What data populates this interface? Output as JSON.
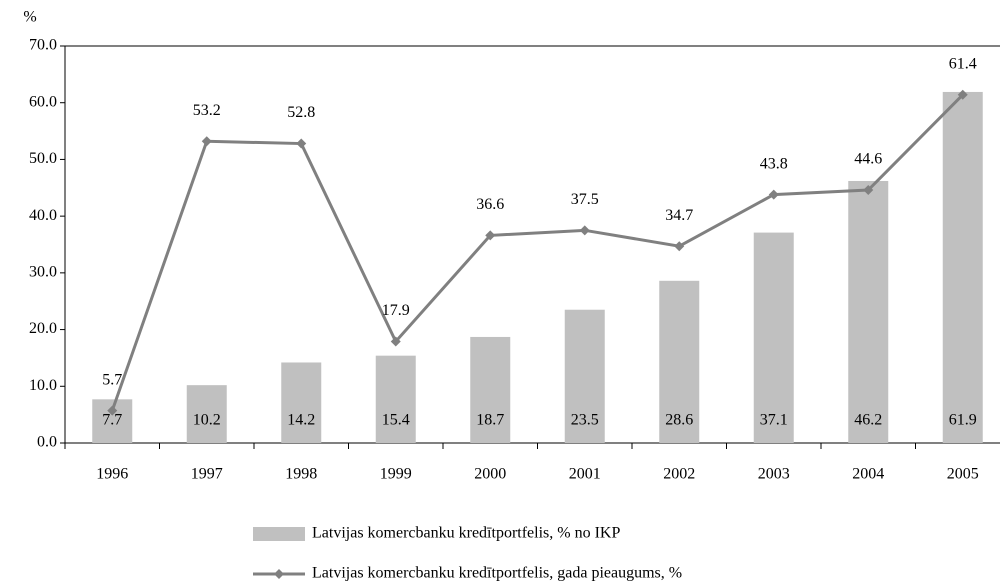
{
  "chart_data": {
    "type": "bar_line",
    "y_label": "%",
    "categories": [
      "1996",
      "1997",
      "1998",
      "1999",
      "2000",
      "2001",
      "2002",
      "2003",
      "2004",
      "2005"
    ],
    "series": [
      {
        "name": "Latvijas komercbanku kredītportfelis, % no IKP",
        "type": "bar",
        "color": "#c0c0c0",
        "values": [
          7.7,
          10.2,
          14.2,
          15.4,
          18.7,
          23.5,
          28.6,
          37.1,
          46.2,
          61.9
        ]
      },
      {
        "name": "Latvijas komercbanku kredītportfelis, gada pieaugums, %",
        "type": "line",
        "color": "#808080",
        "values": [
          5.7,
          53.2,
          52.8,
          17.9,
          36.6,
          37.5,
          34.7,
          43.8,
          44.6,
          61.4
        ]
      }
    ],
    "ylim": [
      0,
      70
    ],
    "yticks": [
      {
        "value": 0,
        "label": "0.0"
      },
      {
        "value": 10,
        "label": "10.0"
      },
      {
        "value": 20,
        "label": "20.0"
      },
      {
        "value": 30,
        "label": "30.0"
      },
      {
        "value": 40,
        "label": "40.0"
      },
      {
        "value": 50,
        "label": "50.0"
      },
      {
        "value": 60,
        "label": "60.0"
      },
      {
        "value": 70,
        "label": "70.0"
      }
    ],
    "legend": "bottom"
  }
}
